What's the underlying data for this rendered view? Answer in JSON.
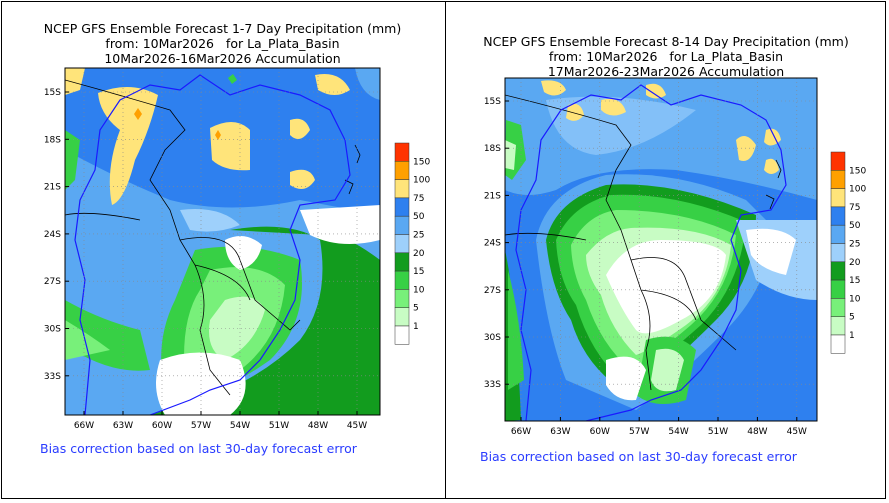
{
  "colors": {
    "c150": "#ff3300",
    "c100": "#ffa000",
    "c75": "#ffe47a",
    "c50": "#2e80ef",
    "c25": "#5aa8f2",
    "c20": "#9ed0fb",
    "c15": "#129c1e",
    "c10": "#37d045",
    "c5": "#78f07a",
    "c1": "#c8fcc4",
    "c0": "#ffffff",
    "border": "#1a1aff"
  },
  "legend": [
    "150",
    "100",
    "75",
    "50",
    "25",
    "20",
    "15",
    "10",
    "5",
    "1"
  ],
  "lat_ticks": [
    "15S",
    "18S",
    "21S",
    "24S",
    "27S",
    "30S",
    "33S"
  ],
  "lon_ticks": [
    "66W",
    "63W",
    "60W",
    "57W",
    "54W",
    "51W",
    "48W",
    "45W"
  ],
  "left": {
    "title1": "NCEP GFS Ensemble Forecast 1-7 Day Precipitation (mm)",
    "title2": "from: 10Mar2026   for La_Plata_Basin",
    "title3": "10Mar2026-16Mar2026 Accumulation",
    "note": "Bias correction based on last 30-day forecast error"
  },
  "right": {
    "title1": "NCEP GFS Ensemble Forecast 8-14 Day Precipitation (mm)",
    "title2": "from: 10Mar2026   for La_Plata_Basin",
    "title3": "17Mar2026-23Mar2026 Accumulation",
    "note": "Bias correction based on last 30-day forecast error"
  }
}
